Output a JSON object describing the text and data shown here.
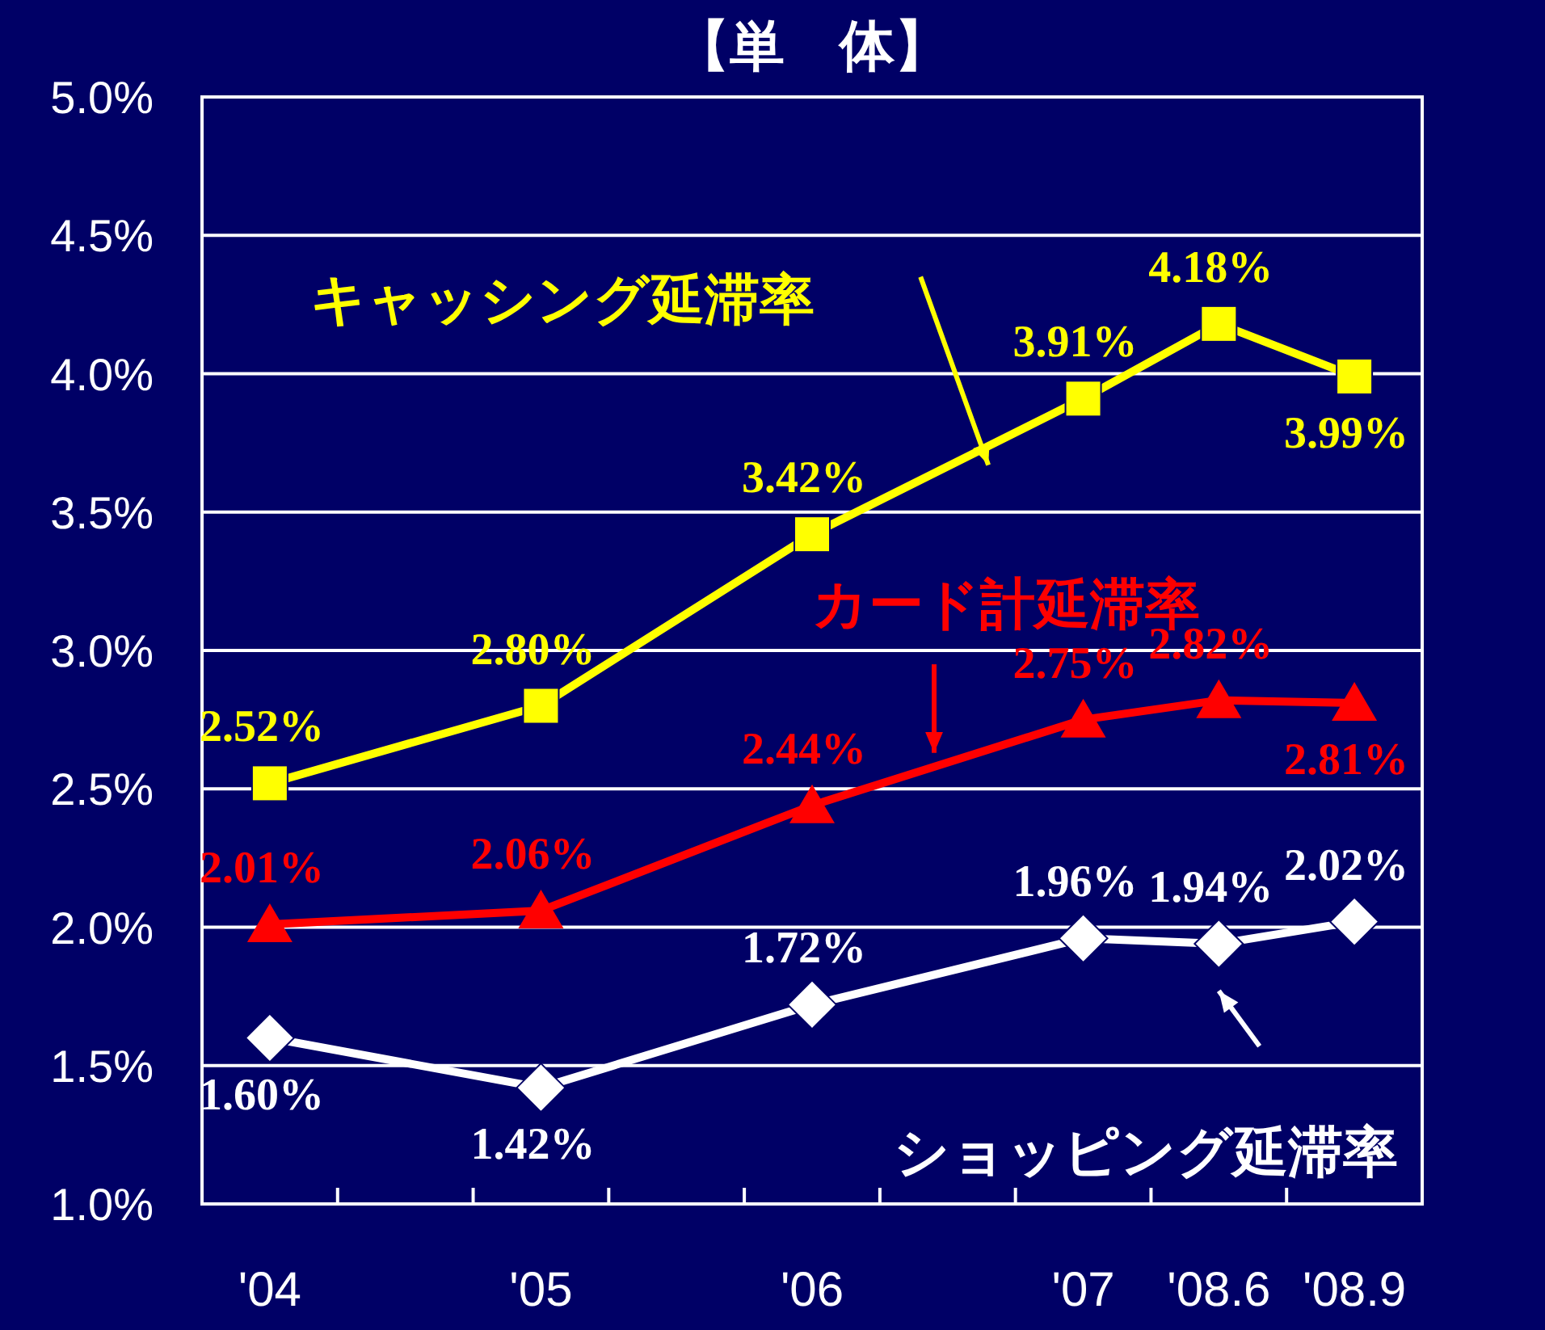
{
  "chart_data": {
    "type": "line",
    "title": "【単　体】",
    "categories": [
      "'04",
      null,
      "'05",
      null,
      "'06",
      null,
      "'07",
      "'08.6",
      "'08.9"
    ],
    "series": [
      {
        "name": "キャッシング延滞率",
        "color": "#ffff00",
        "marker": "square",
        "values": [
          2.52,
          null,
          2.8,
          null,
          3.42,
          null,
          3.91,
          4.18,
          3.99
        ],
        "value_labels": [
          "2.52%",
          null,
          "2.80%",
          null,
          "3.42%",
          null,
          "3.91%",
          "4.18%",
          "3.99%"
        ]
      },
      {
        "name": "カード計延滞率",
        "color": "#ff0000",
        "marker": "triangle",
        "values": [
          2.01,
          null,
          2.06,
          null,
          2.44,
          null,
          2.75,
          2.82,
          2.81
        ],
        "value_labels": [
          "2.01%",
          null,
          "2.06%",
          null,
          "2.44%",
          null,
          "2.75%",
          "2.82%",
          "2.81%"
        ]
      },
      {
        "name": "ショッピング延滞率",
        "color": "#ffffff",
        "marker": "diamond",
        "values": [
          1.6,
          null,
          1.42,
          null,
          1.72,
          null,
          1.96,
          1.94,
          2.02
        ],
        "value_labels": [
          "1.60%",
          null,
          "1.42%",
          null,
          "1.72%",
          null,
          "1.96%",
          "1.94%",
          "2.02%"
        ]
      }
    ],
    "ylim": [
      1.0,
      5.0
    ],
    "yticks": [
      {
        "value": 1.0,
        "label": "1.0%"
      },
      {
        "value": 1.5,
        "label": "1.5%"
      },
      {
        "value": 2.0,
        "label": "2.0%"
      },
      {
        "value": 2.5,
        "label": "2.5%"
      },
      {
        "value": 3.0,
        "label": "3.0%"
      },
      {
        "value": 3.5,
        "label": "3.5%"
      },
      {
        "value": 4.0,
        "label": "4.0%"
      },
      {
        "value": 4.5,
        "label": "4.5%"
      },
      {
        "value": 5.0,
        "label": "5.0%"
      }
    ],
    "grid": "y"
  }
}
